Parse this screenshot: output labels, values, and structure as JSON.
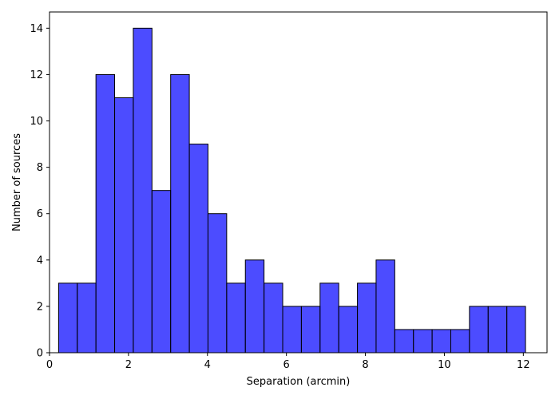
{
  "chart_data": {
    "type": "bar",
    "title": "",
    "xlabel": "Separation (arcmin)",
    "ylabel": "Number of sources",
    "xlim": [
      0,
      12.6
    ],
    "ylim": [
      0,
      14.7
    ],
    "grid": false,
    "bar_color": "#0000ff",
    "bar_opacity": 0.7,
    "edge_color": "#000000",
    "bin_edges": [
      0.23,
      0.703,
      1.176,
      1.649,
      2.122,
      2.595,
      3.068,
      3.541,
      4.014,
      4.487,
      4.96,
      5.433,
      5.906,
      6.379,
      6.852,
      7.325,
      7.798,
      8.271,
      8.744,
      9.217,
      9.69,
      10.163,
      10.636,
      11.109,
      11.582,
      12.055
    ],
    "values": [
      3,
      3,
      12,
      11,
      14,
      7,
      12,
      9,
      6,
      3,
      4,
      3,
      2,
      2,
      3,
      2,
      3,
      4,
      1,
      1,
      1,
      1,
      2,
      2,
      2
    ],
    "xticks": [
      0,
      2,
      4,
      6,
      8,
      10,
      12
    ],
    "xtick_labels": [
      "0",
      "2",
      "4",
      "6",
      "8",
      "10",
      "12"
    ],
    "yticks": [
      0,
      2,
      4,
      6,
      8,
      10,
      12,
      14
    ],
    "ytick_labels": [
      "0",
      "2",
      "4",
      "6",
      "8",
      "10",
      "12",
      "14"
    ]
  }
}
